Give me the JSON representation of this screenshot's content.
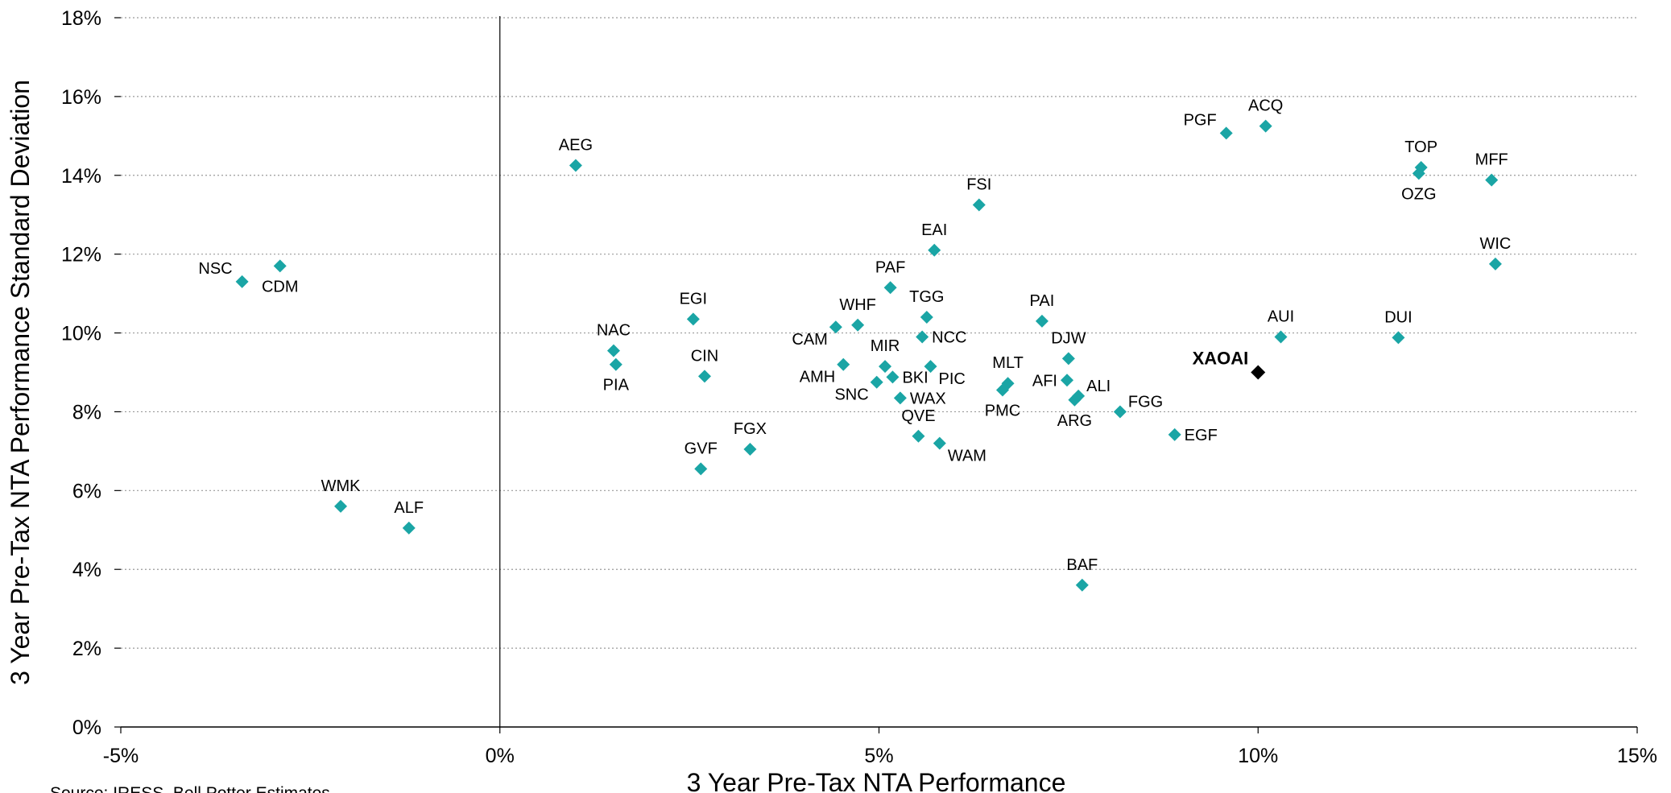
{
  "chart_data": {
    "type": "scatter",
    "title": "",
    "xlabel": "3 Year Pre-Tax NTA Performance",
    "ylabel": "3 Year Pre-Tax NTA Performance Standard Deviation",
    "xlim": [
      -5,
      15
    ],
    "ylim": [
      0,
      18
    ],
    "x_ticks": [
      "-5%",
      "0%",
      "5%",
      "10%",
      "15%"
    ],
    "x_tick_values": [
      -5,
      0,
      5,
      10,
      15
    ],
    "y_ticks": [
      "0%",
      "2%",
      "4%",
      "6%",
      "8%",
      "10%",
      "12%",
      "14%",
      "16%",
      "18%"
    ],
    "y_tick_values": [
      0,
      2,
      4,
      6,
      8,
      10,
      12,
      14,
      16,
      18
    ],
    "grid": "horizontal-dotted",
    "marker_color": "#1aa5a5",
    "highlight_color": "#000000",
    "source_note": "Source: IRESS, Bell Potter Estimates",
    "points": [
      {
        "label": "NSC",
        "x": -3.4,
        "y": 11.3,
        "lpos": "above-left"
      },
      {
        "label": "CDM",
        "x": -2.9,
        "y": 11.7,
        "lpos": "below"
      },
      {
        "label": "WMK",
        "x": -2.1,
        "y": 5.6,
        "lpos": "above"
      },
      {
        "label": "ALF",
        "x": -1.2,
        "y": 5.05,
        "lpos": "above"
      },
      {
        "label": "AEG",
        "x": 1.0,
        "y": 14.25,
        "lpos": "above"
      },
      {
        "label": "NAC",
        "x": 1.5,
        "y": 9.55,
        "lpos": "above"
      },
      {
        "label": "PIA",
        "x": 1.53,
        "y": 9.2,
        "lpos": "below"
      },
      {
        "label": "EGI",
        "x": 2.55,
        "y": 10.35,
        "lpos": "above"
      },
      {
        "label": "CIN",
        "x": 2.7,
        "y": 8.9,
        "lpos": "above"
      },
      {
        "label": "GVF",
        "x": 2.65,
        "y": 6.55,
        "lpos": "above"
      },
      {
        "label": "FGX",
        "x": 3.3,
        "y": 7.05,
        "lpos": "above"
      },
      {
        "label": "CAM",
        "x": 4.43,
        "y": 10.15,
        "lpos": "below-left"
      },
      {
        "label": "WHF",
        "x": 4.72,
        "y": 10.2,
        "lpos": "above"
      },
      {
        "label": "AMH",
        "x": 4.53,
        "y": 9.2,
        "lpos": "below-left"
      },
      {
        "label": "MIR",
        "x": 5.08,
        "y": 9.15,
        "lpos": "above"
      },
      {
        "label": "SNC",
        "x": 4.97,
        "y": 8.75,
        "lpos": "below-left"
      },
      {
        "label": "BKI",
        "x": 5.18,
        "y": 8.88,
        "lpos": "right"
      },
      {
        "label": "PAF",
        "x": 5.15,
        "y": 11.15,
        "lpos": "above"
      },
      {
        "label": "TGG",
        "x": 5.63,
        "y": 10.4,
        "lpos": "above"
      },
      {
        "label": "NCC",
        "x": 5.57,
        "y": 9.9,
        "lpos": "right"
      },
      {
        "label": "PIC",
        "x": 5.68,
        "y": 9.15,
        "lpos": "below-right"
      },
      {
        "label": "WAX",
        "x": 5.28,
        "y": 8.35,
        "lpos": "right"
      },
      {
        "label": "QVE",
        "x": 5.52,
        "y": 7.38,
        "lpos": "above"
      },
      {
        "label": "WAM",
        "x": 5.8,
        "y": 7.2,
        "lpos": "below-right"
      },
      {
        "label": "EAI",
        "x": 5.73,
        "y": 12.1,
        "lpos": "above"
      },
      {
        "label": "FSI",
        "x": 6.32,
        "y": 13.25,
        "lpos": "above"
      },
      {
        "label": "MLT",
        "x": 6.7,
        "y": 8.72,
        "lpos": "above"
      },
      {
        "label": "PMC",
        "x": 6.63,
        "y": 8.55,
        "lpos": "below"
      },
      {
        "label": "PAI",
        "x": 7.15,
        "y": 10.3,
        "lpos": "above"
      },
      {
        "label": "DJW",
        "x": 7.5,
        "y": 9.35,
        "lpos": "above"
      },
      {
        "label": "AFI",
        "x": 7.48,
        "y": 8.8,
        "lpos": "left"
      },
      {
        "label": "ALI",
        "x": 7.63,
        "y": 8.4,
        "lpos": "above-right"
      },
      {
        "label": "ARG",
        "x": 7.58,
        "y": 8.3,
        "lpos": "below"
      },
      {
        "label": "BAF",
        "x": 7.68,
        "y": 3.6,
        "lpos": "above"
      },
      {
        "label": "FGG",
        "x": 8.18,
        "y": 8.0,
        "lpos": "above-right"
      },
      {
        "label": "EGF",
        "x": 8.9,
        "y": 7.42,
        "lpos": "right"
      },
      {
        "label": "PGF",
        "x": 9.58,
        "y": 15.07,
        "lpos": "above-left"
      },
      {
        "label": "ACQ",
        "x": 10.1,
        "y": 15.25,
        "lpos": "above"
      },
      {
        "label": "AUI",
        "x": 10.3,
        "y": 9.9,
        "lpos": "above"
      },
      {
        "label": "XAOAI",
        "x": 10.0,
        "y": 9.0,
        "lpos": "above-left",
        "highlight": true
      },
      {
        "label": "DUI",
        "x": 11.85,
        "y": 9.88,
        "lpos": "above"
      },
      {
        "label": "TOP",
        "x": 12.15,
        "y": 14.2,
        "lpos": "above"
      },
      {
        "label": "OZG",
        "x": 12.12,
        "y": 14.05,
        "lpos": "below"
      },
      {
        "label": "MFF",
        "x": 13.08,
        "y": 13.88,
        "lpos": "above"
      },
      {
        "label": "WIC",
        "x": 13.13,
        "y": 11.75,
        "lpos": "above"
      }
    ]
  }
}
